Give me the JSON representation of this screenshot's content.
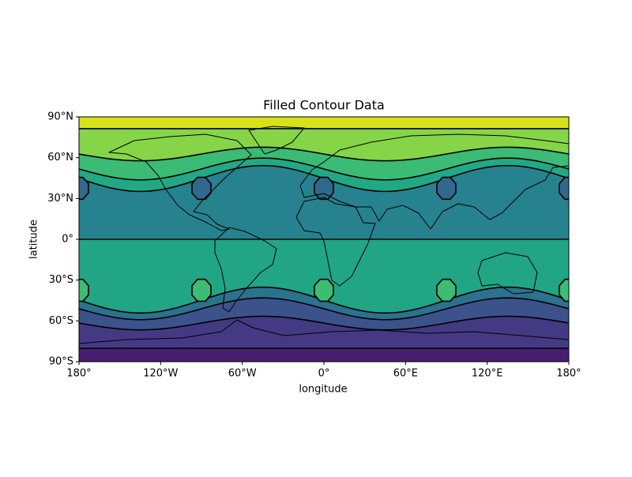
{
  "chart_data": {
    "type": "filled-contour-map",
    "title": "Filled Contour Data",
    "x_label": "longitude",
    "y_label": "latitude",
    "xlim": [
      -180,
      180
    ],
    "ylim": [
      -90,
      90
    ],
    "xticks": [
      {
        "value": -180,
        "label": "180°"
      },
      {
        "value": -120,
        "label": "120°W"
      },
      {
        "value": -60,
        "label": "60°W"
      },
      {
        "value": 0,
        "label": "0°"
      },
      {
        "value": 60,
        "label": "60°E"
      },
      {
        "value": 120,
        "label": "120°E"
      },
      {
        "value": 180,
        "label": "180°"
      }
    ],
    "yticks": [
      {
        "value": -90,
        "label": "90°S"
      },
      {
        "value": -60,
        "label": "60°S"
      },
      {
        "value": -30,
        "label": "30°S"
      },
      {
        "value": 0,
        "label": "0°"
      },
      {
        "value": 30,
        "label": "30°N"
      },
      {
        "value": 60,
        "label": "60°N"
      },
      {
        "value": 90,
        "label": "90°N"
      }
    ],
    "level_colors": [
      "#d8e219",
      "#86d549",
      "#3bbb75",
      "#22a884",
      "#26828e",
      "#21a585",
      "#2c728e",
      "#3b528b",
      "#443983",
      "#481f70"
    ],
    "north_cell_color": "#31688e",
    "south_cell_color": "#3dbc74"
  }
}
